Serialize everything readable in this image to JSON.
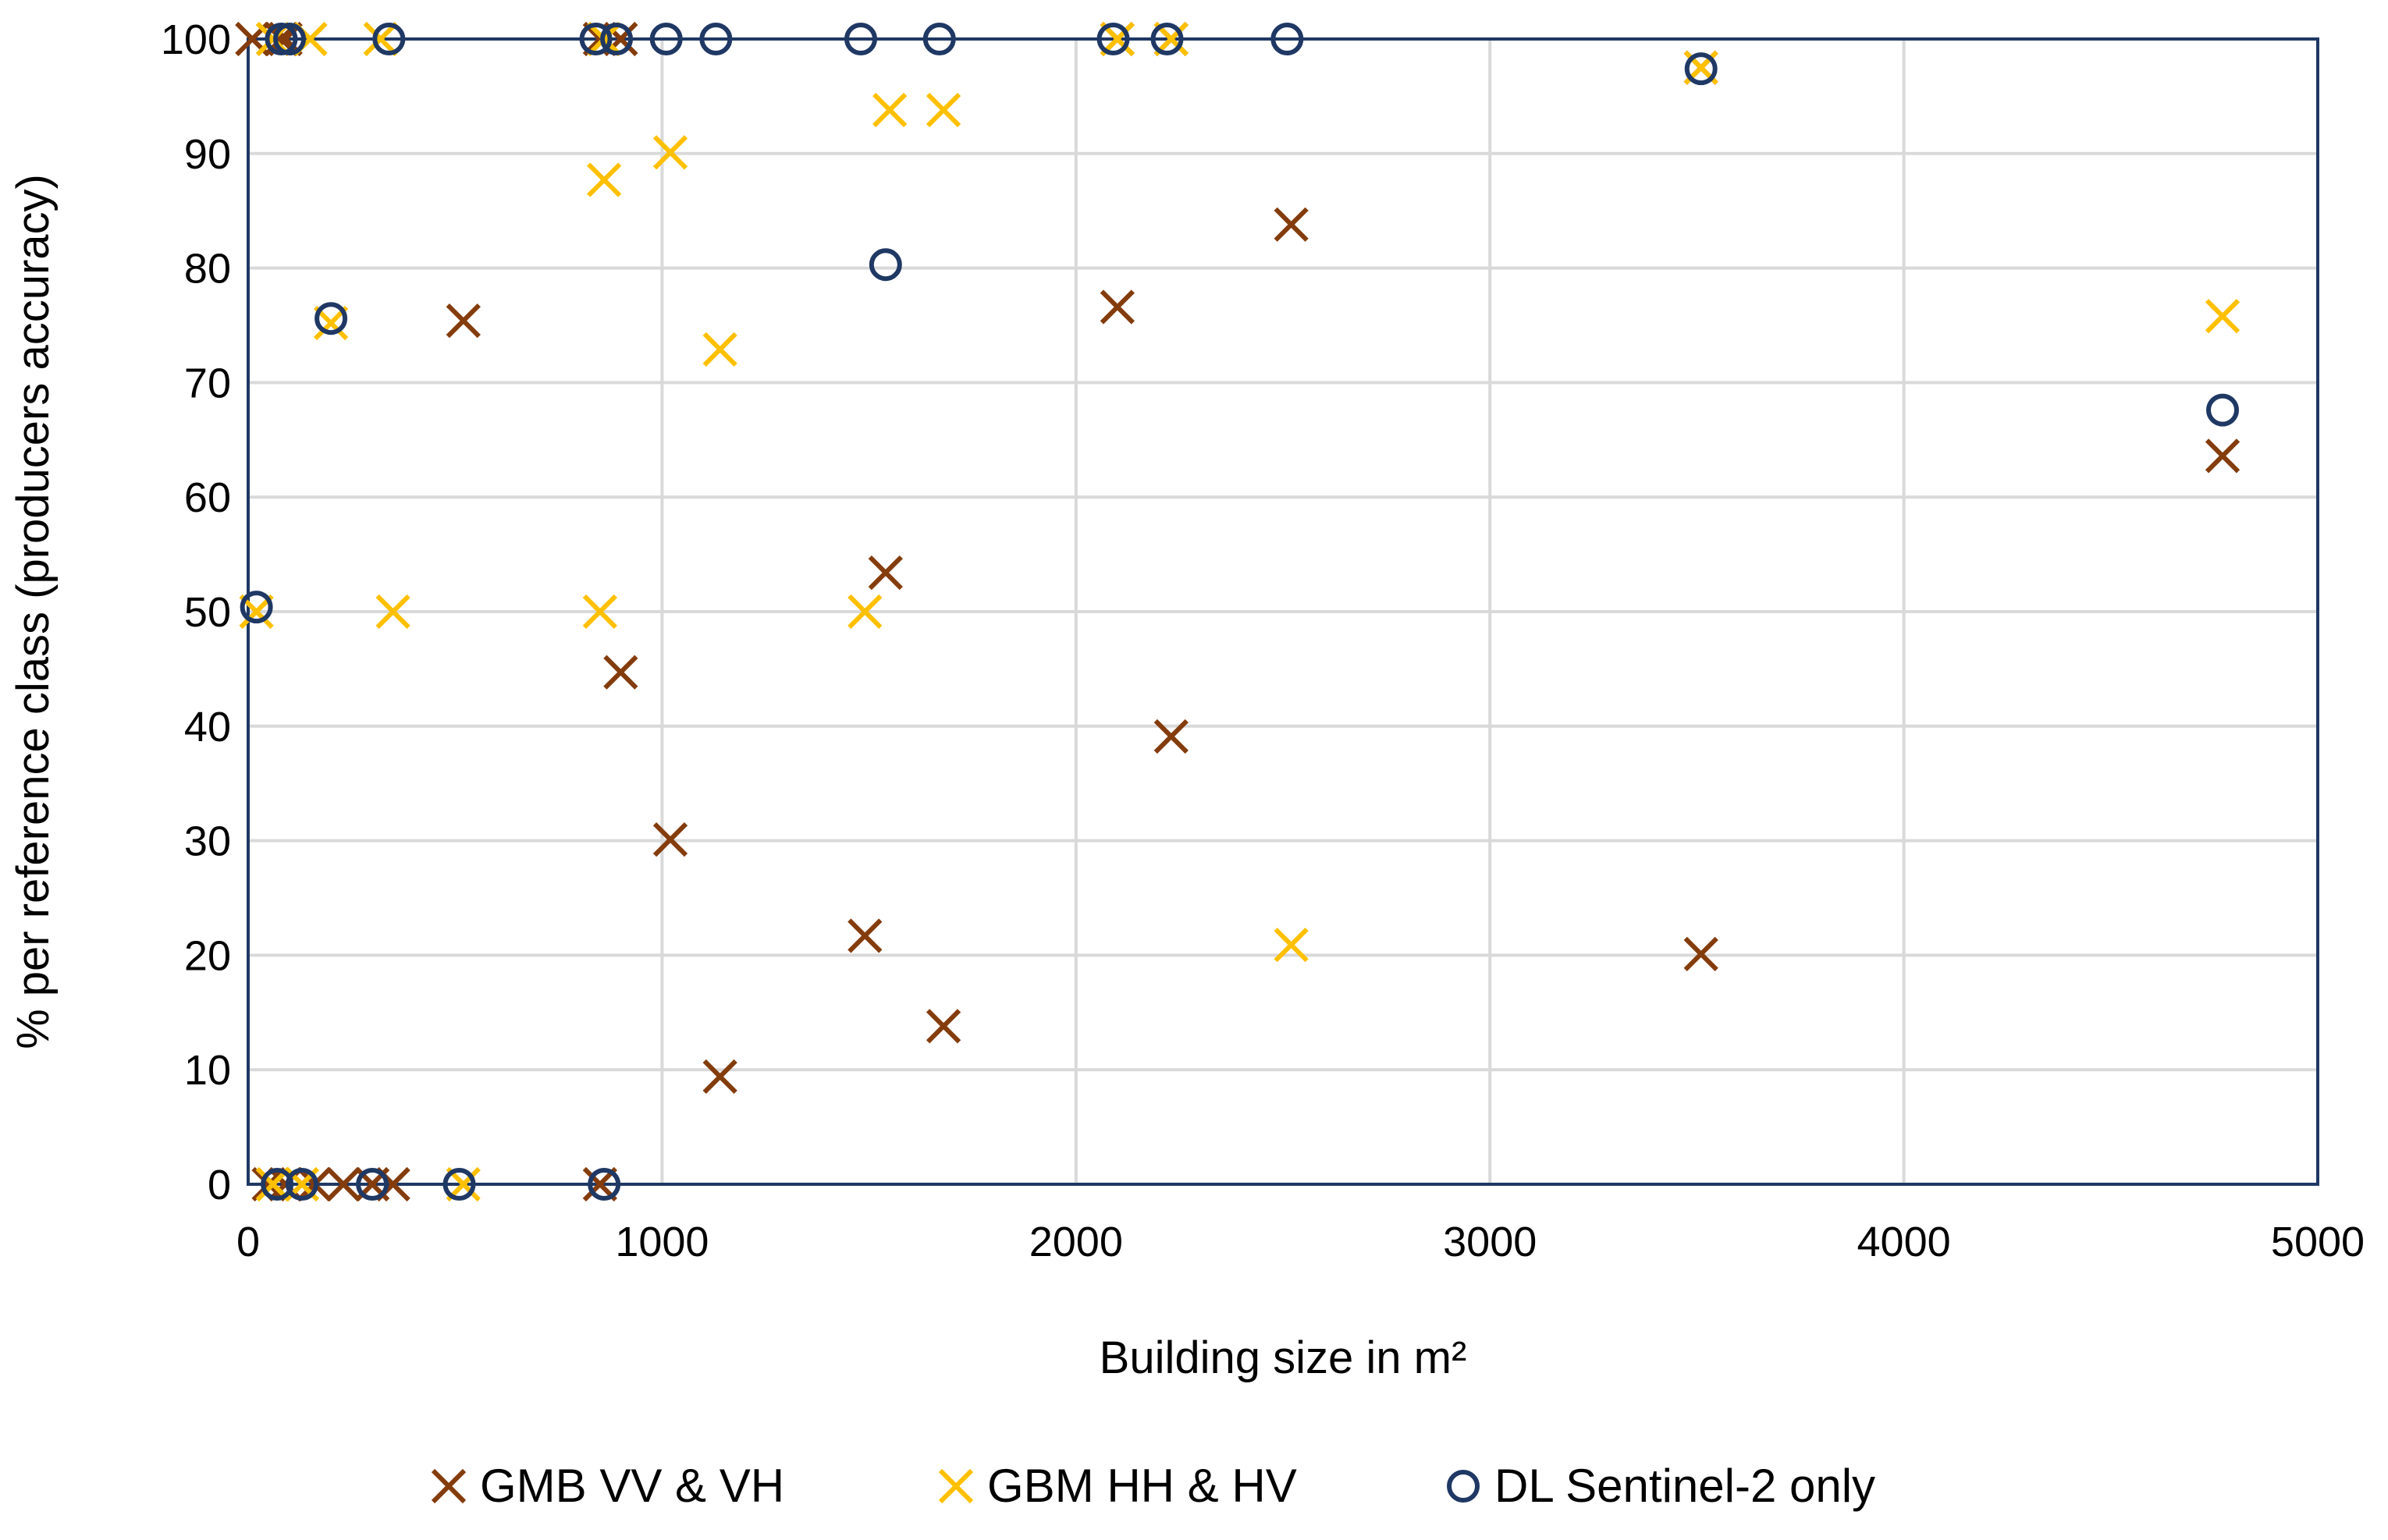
{
  "chart_data": {
    "type": "scatter",
    "title": "",
    "xlabel": "Building size in m²",
    "ylabel": "% per reference class (producers accuracy)",
    "xlim": [
      0,
      5000
    ],
    "ylim": [
      0,
      100
    ],
    "xticks": [
      0,
      1000,
      2000,
      3000,
      4000,
      5000
    ],
    "yticks": [
      0,
      10,
      20,
      30,
      40,
      50,
      60,
      70,
      80,
      90,
      100
    ],
    "grid": true,
    "legend_position": "bottom",
    "series": [
      {
        "name": "GMB VV & VH",
        "marker": "x",
        "color": "#843c0c",
        "points": [
          {
            "x": 10,
            "y": 100
          },
          {
            "x": 80,
            "y": 100
          },
          {
            "x": 90,
            "y": 100
          },
          {
            "x": 850,
            "y": 100
          },
          {
            "x": 900,
            "y": 100
          },
          {
            "x": 2100,
            "y": 100
          },
          {
            "x": 2230,
            "y": 100
          },
          {
            "x": 3510,
            "y": 97.5
          },
          {
            "x": 2520,
            "y": 83.8
          },
          {
            "x": 2100,
            "y": 76.6
          },
          {
            "x": 520,
            "y": 75.4
          },
          {
            "x": 4770,
            "y": 63.6
          },
          {
            "x": 1540,
            "y": 53.4
          },
          {
            "x": 900,
            "y": 44.7
          },
          {
            "x": 2230,
            "y": 39.1
          },
          {
            "x": 1020,
            "y": 30.1
          },
          {
            "x": 1490,
            "y": 21.7
          },
          {
            "x": 3510,
            "y": 20.1
          },
          {
            "x": 1680,
            "y": 13.8
          },
          {
            "x": 1140,
            "y": 9.4
          },
          {
            "x": 50,
            "y": 0
          },
          {
            "x": 90,
            "y": 0
          },
          {
            "x": 160,
            "y": 0
          },
          {
            "x": 230,
            "y": 0
          },
          {
            "x": 300,
            "y": 0
          },
          {
            "x": 350,
            "y": 0
          },
          {
            "x": 850,
            "y": 0
          }
        ]
      },
      {
        "name": "GBM HH & HV",
        "marker": "x",
        "color": "#ffc000",
        "points": [
          {
            "x": 60,
            "y": 100
          },
          {
            "x": 150,
            "y": 100
          },
          {
            "x": 320,
            "y": 100
          },
          {
            "x": 860,
            "y": 100
          },
          {
            "x": 2100,
            "y": 100
          },
          {
            "x": 2230,
            "y": 100
          },
          {
            "x": 1550,
            "y": 93.8
          },
          {
            "x": 1680,
            "y": 93.8
          },
          {
            "x": 1020,
            "y": 90.1
          },
          {
            "x": 860,
            "y": 87.7
          },
          {
            "x": 200,
            "y": 75.2
          },
          {
            "x": 4770,
            "y": 75.8
          },
          {
            "x": 1140,
            "y": 72.9
          },
          {
            "x": 3510,
            "y": 97.5
          },
          {
            "x": 20,
            "y": 50
          },
          {
            "x": 350,
            "y": 50
          },
          {
            "x": 850,
            "y": 50
          },
          {
            "x": 1490,
            "y": 50
          },
          {
            "x": 2520,
            "y": 20.9
          },
          {
            "x": 60,
            "y": 0
          },
          {
            "x": 130,
            "y": 0
          },
          {
            "x": 520,
            "y": 0
          }
        ]
      },
      {
        "name": "DL Sentinel-2 only",
        "marker": "o",
        "color": "#1f3864",
        "points": [
          {
            "x": 80,
            "y": 100
          },
          {
            "x": 100,
            "y": 100
          },
          {
            "x": 340,
            "y": 100
          },
          {
            "x": 840,
            "y": 100
          },
          {
            "x": 890,
            "y": 100
          },
          {
            "x": 1010,
            "y": 100
          },
          {
            "x": 1130,
            "y": 100
          },
          {
            "x": 1480,
            "y": 100
          },
          {
            "x": 1670,
            "y": 100
          },
          {
            "x": 2090,
            "y": 100
          },
          {
            "x": 2220,
            "y": 100
          },
          {
            "x": 2510,
            "y": 100
          },
          {
            "x": 3510,
            "y": 97.4
          },
          {
            "x": 1540,
            "y": 80.3
          },
          {
            "x": 200,
            "y": 75.6
          },
          {
            "x": 4770,
            "y": 67.6
          },
          {
            "x": 20,
            "y": 50.4
          },
          {
            "x": 70,
            "y": 0
          },
          {
            "x": 130,
            "y": 0
          },
          {
            "x": 300,
            "y": 0
          },
          {
            "x": 510,
            "y": 0
          },
          {
            "x": 860,
            "y": 0
          }
        ]
      }
    ]
  }
}
